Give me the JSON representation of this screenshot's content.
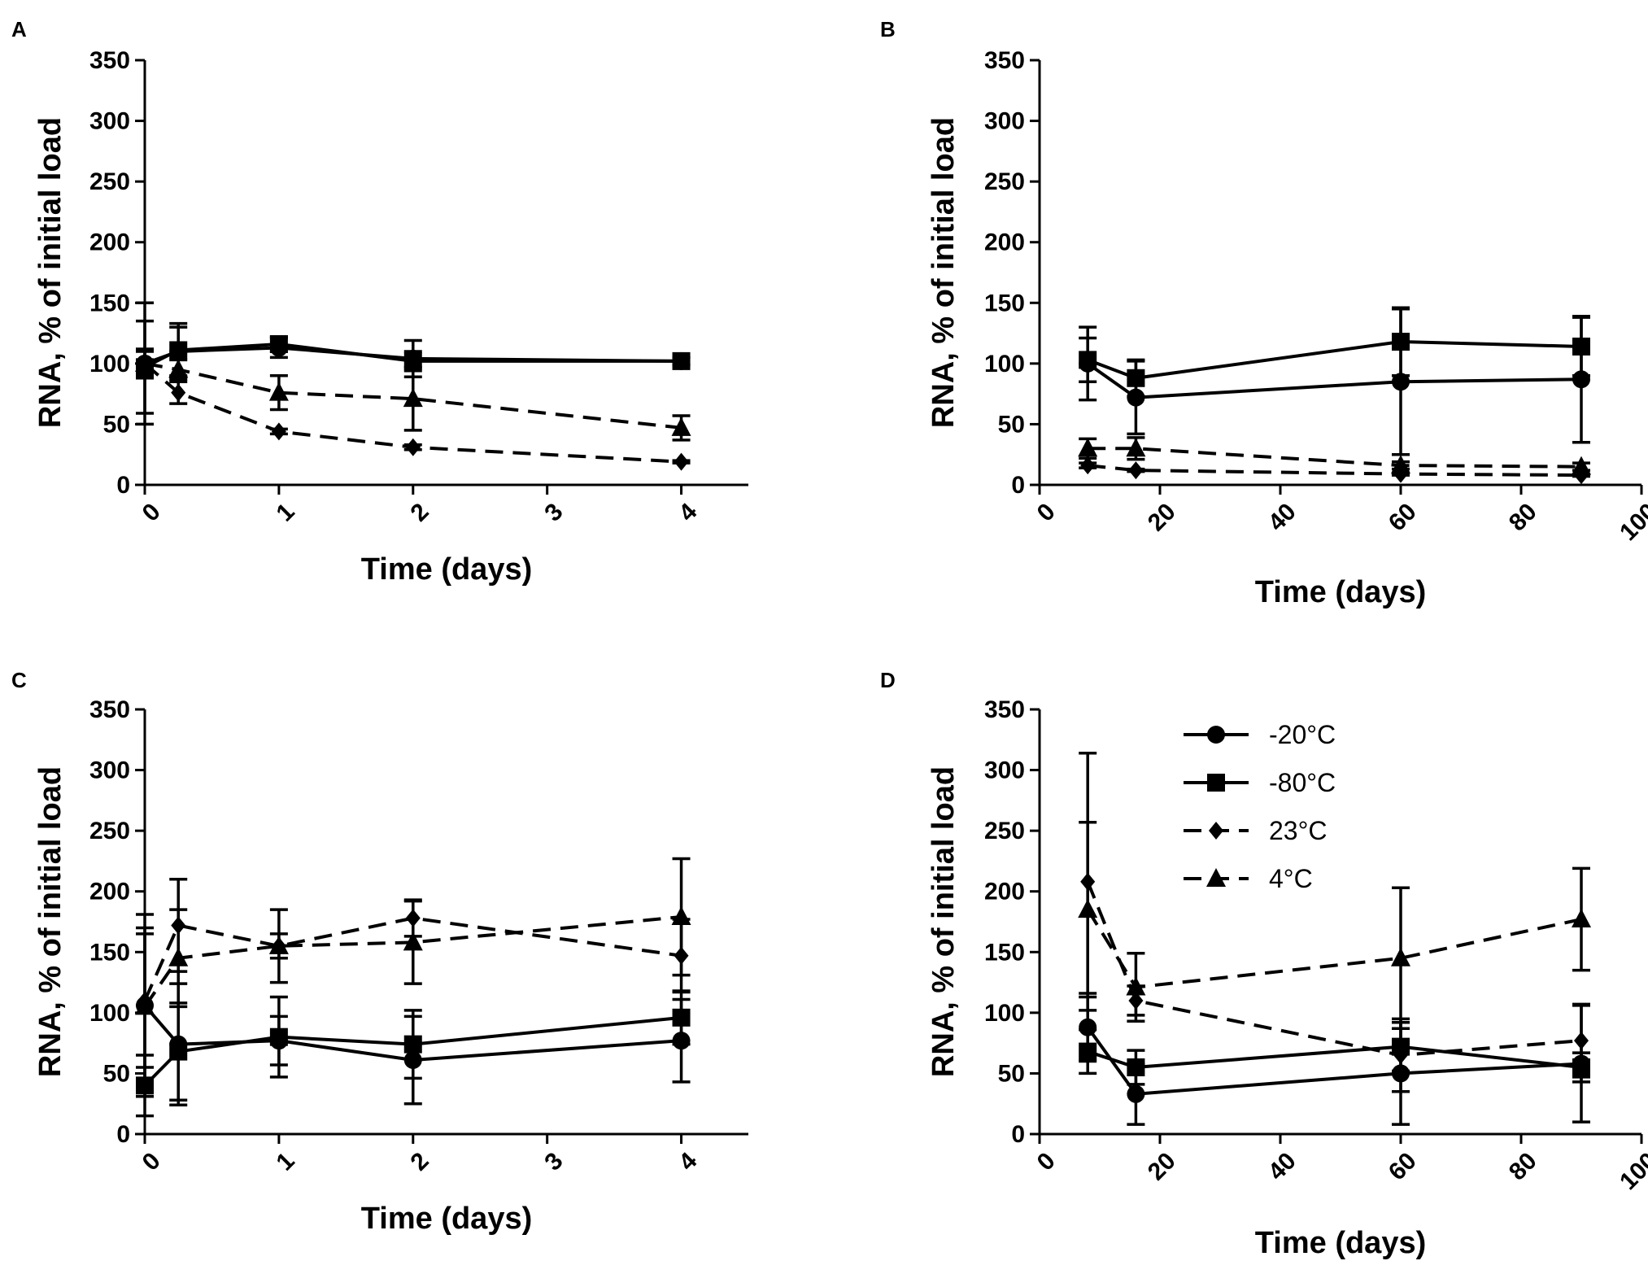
{
  "chart_data": [
    {
      "panel": "A",
      "type": "line",
      "xlabel": "Time (days)",
      "ylabel": "RNA, % of initial load",
      "xlim": [
        0,
        4.5
      ],
      "ylim": [
        0,
        350
      ],
      "xticks": [
        0,
        1,
        2,
        3,
        4
      ],
      "yticks": [
        0,
        50,
        100,
        150,
        200,
        250,
        300,
        350
      ],
      "series": [
        {
          "name": "-20°C",
          "marker": "circle",
          "dash": "solid",
          "x": [
            0,
            0.25,
            1,
            2,
            4
          ],
          "y": [
            100,
            110,
            113,
            104,
            102
          ],
          "err": [
            50,
            20,
            8,
            15,
            3
          ]
        },
        {
          "name": "-80°C",
          "marker": "square",
          "dash": "solid",
          "x": [
            0,
            0.25,
            1,
            2,
            4
          ],
          "y": [
            97,
            111,
            116,
            102,
            102
          ],
          "err": [
            38,
            22,
            6,
            8,
            3
          ]
        },
        {
          "name": "23°C",
          "marker": "diamond",
          "dash": "dashed",
          "x": [
            0,
            0.25,
            1,
            2,
            4
          ],
          "y": [
            100,
            76,
            44,
            31,
            19
          ],
          "err": [
            12,
            9,
            2,
            2,
            1
          ]
        },
        {
          "name": "4°C",
          "marker": "triangle",
          "dash": "dashed",
          "x": [
            0,
            0.25,
            1,
            2,
            4
          ],
          "y": [
            100,
            95,
            76,
            71,
            47
          ],
          "err": [
            10,
            8,
            14,
            26,
            10
          ]
        }
      ]
    },
    {
      "panel": "B",
      "type": "line",
      "xlabel": "Time (days)",
      "ylabel": "RNA, % of initial load",
      "xlim": [
        0,
        100
      ],
      "ylim": [
        0,
        350
      ],
      "xticks": [
        0,
        20,
        40,
        60,
        80,
        100
      ],
      "yticks": [
        0,
        50,
        100,
        150,
        200,
        250,
        300,
        350
      ],
      "series": [
        {
          "name": "-20°C",
          "marker": "circle",
          "dash": "solid",
          "x": [
            8,
            16,
            60,
            90
          ],
          "y": [
            100,
            72,
            85,
            87
          ],
          "err": [
            30,
            30,
            60,
            52
          ]
        },
        {
          "name": "-80°C",
          "marker": "square",
          "dash": "solid",
          "x": [
            8,
            16,
            60,
            90
          ],
          "y": [
            103,
            88,
            118,
            114
          ],
          "err": [
            18,
            15,
            28,
            24
          ]
        },
        {
          "name": "23°C",
          "marker": "diamond",
          "dash": "dashed",
          "x": [
            8,
            16,
            60,
            90
          ],
          "y": [
            16,
            12,
            9,
            8
          ],
          "err": [
            2,
            1,
            1,
            1
          ]
        },
        {
          "name": "4°C",
          "marker": "triangle",
          "dash": "dashed",
          "x": [
            8,
            16,
            60,
            90
          ],
          "y": [
            30,
            30,
            16,
            15
          ],
          "err": [
            8,
            9,
            3,
            3
          ]
        }
      ]
    },
    {
      "panel": "C",
      "type": "line",
      "xlabel": "Time (days)",
      "ylabel": "RNA, % of initial load",
      "xlim": [
        0,
        4.5
      ],
      "ylim": [
        0,
        350
      ],
      "xticks": [
        0,
        1,
        2,
        3,
        4
      ],
      "yticks": [
        0,
        50,
        100,
        150,
        200,
        250,
        300,
        350
      ],
      "series": [
        {
          "name": "-20°C",
          "marker": "circle",
          "dash": "solid",
          "x": [
            0,
            0.25,
            1,
            2,
            4
          ],
          "y": [
            106,
            74,
            77,
            61,
            77
          ],
          "err": [
            75,
            50,
            20,
            36,
            34
          ]
        },
        {
          "name": "-80°C",
          "marker": "square",
          "dash": "solid",
          "x": [
            0,
            0.25,
            1,
            2,
            4
          ],
          "y": [
            40,
            68,
            80,
            74,
            96
          ],
          "err": [
            25,
            40,
            33,
            28,
            22
          ]
        },
        {
          "name": "23°C",
          "marker": "diamond",
          "dash": "dashed",
          "x": [
            0,
            0.25,
            1,
            2,
            4
          ],
          "y": [
            110,
            172,
            155,
            178,
            147
          ],
          "err": [
            55,
            38,
            30,
            15,
            30
          ]
        },
        {
          "name": "4°C",
          "marker": "triangle",
          "dash": "dashed",
          "x": [
            0,
            0.25,
            1,
            2,
            4
          ],
          "y": [
            105,
            145,
            155,
            158,
            179
          ],
          "err": [
            65,
            40,
            10,
            34,
            48
          ]
        }
      ]
    },
    {
      "panel": "D",
      "type": "line",
      "xlabel": "Time (days)",
      "ylabel": "RNA, % of initial load",
      "xlim": [
        0,
        100
      ],
      "ylim": [
        0,
        350
      ],
      "xticks": [
        0,
        20,
        40,
        60,
        80,
        100
      ],
      "yticks": [
        0,
        50,
        100,
        150,
        200,
        250,
        300,
        350
      ],
      "legend": [
        "-20°C",
        "-80°C",
        "23°C",
        "4°C"
      ],
      "series": [
        {
          "name": "-20°C",
          "marker": "circle",
          "dash": "solid",
          "x": [
            8,
            16,
            60,
            90
          ],
          "y": [
            88,
            33,
            50,
            58
          ],
          "err": [
            28,
            25,
            42,
            48
          ]
        },
        {
          "name": "-80°C",
          "marker": "square",
          "dash": "solid",
          "x": [
            8,
            16,
            60,
            90
          ],
          "y": [
            68,
            55,
            72,
            55
          ],
          "err": [
            18,
            14,
            20,
            12
          ]
        },
        {
          "name": "23°C",
          "marker": "diamond",
          "dash": "dashed",
          "x": [
            8,
            16,
            60,
            90
          ],
          "y": [
            208,
            110,
            65,
            77
          ],
          "err": [
            106,
            12,
            30,
            30
          ]
        },
        {
          "name": "4°C",
          "marker": "triangle",
          "dash": "dashed",
          "x": [
            8,
            16,
            60,
            90
          ],
          "y": [
            185,
            121,
            145,
            177
          ],
          "err": [
            72,
            28,
            58,
            42
          ]
        }
      ]
    }
  ]
}
